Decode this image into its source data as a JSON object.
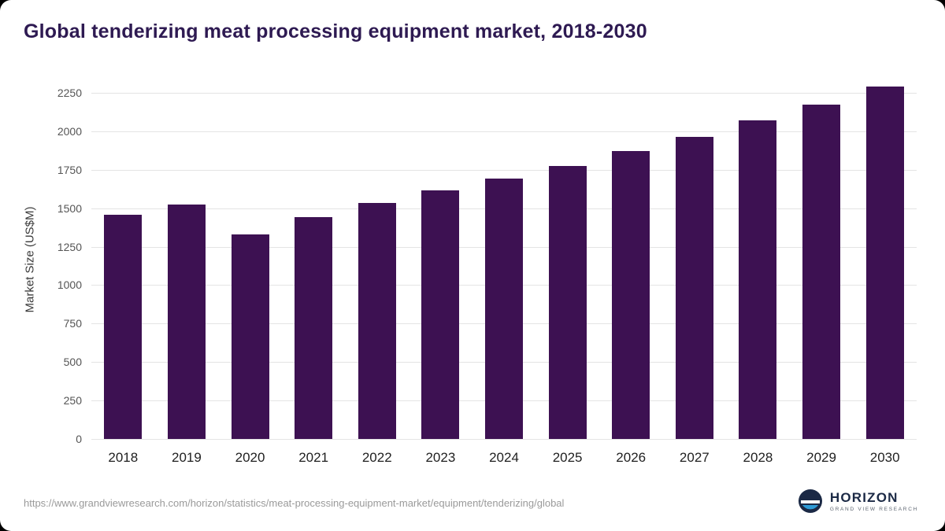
{
  "chart_data": {
    "type": "bar",
    "title": "Global tenderizing meat processing equipment market, 2018-2030",
    "ylabel": "Market Size (US$M)",
    "xlabel": "",
    "categories": [
      "2018",
      "2019",
      "2020",
      "2021",
      "2022",
      "2023",
      "2024",
      "2025",
      "2026",
      "2027",
      "2028",
      "2029",
      "2030"
    ],
    "values": [
      1460,
      1525,
      1330,
      1440,
      1535,
      1615,
      1695,
      1775,
      1870,
      1965,
      2070,
      2175,
      2290
    ],
    "ylim": [
      0,
      2250
    ],
    "ytick_step": 250,
    "grid": true,
    "legend": "none",
    "bar_color": "#3d1152"
  },
  "footer": {
    "source_url": "https://www.grandviewresearch.com/horizon/statistics/meat-processing-equipment-market/equipment/tenderizing/global",
    "logo_title": "HORIZON",
    "logo_subtitle": "GRAND VIEW RESEARCH"
  },
  "colors": {
    "title": "#2e1a52",
    "bar": "#3d1152",
    "gridline": "#e4e4e4",
    "axis_text": "#555555",
    "logo_navy": "#1b2945",
    "logo_blue": "#2e9bd6"
  }
}
